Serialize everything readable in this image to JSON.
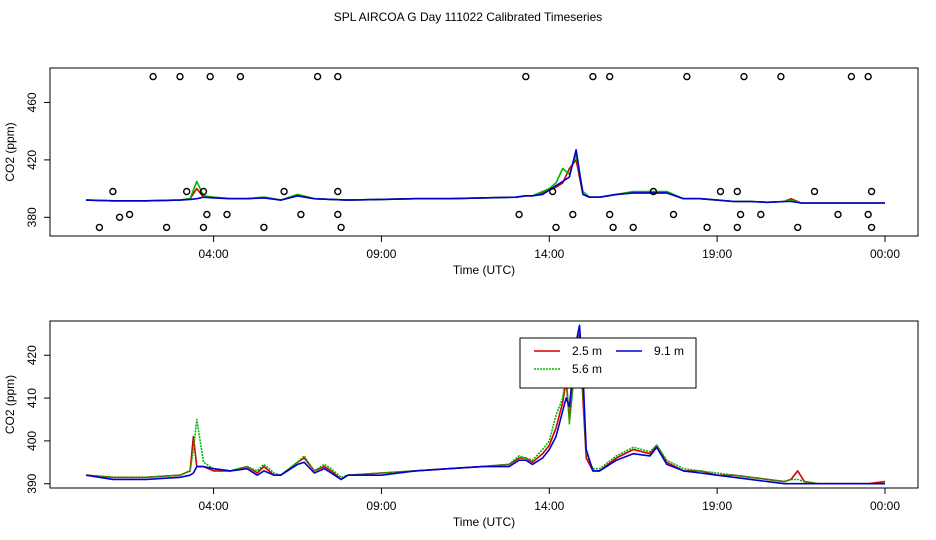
{
  "title": "SPL AIRCOA G  Day 111022  Calibrated Timeseries",
  "chart_data": [
    {
      "type": "line",
      "panel": "top",
      "xlabel": "Time (UTC)",
      "ylabel": "CO2 (ppm)",
      "x_unit": "hours (UTC) from 00:00 of day 111022",
      "xlim": [
        0,
        24
      ],
      "ylim": [
        367,
        484
      ],
      "x_ticks": [
        4,
        9,
        14,
        19,
        24
      ],
      "x_tick_labels": [
        "04:00",
        "09:00",
        "14:00",
        "19:00",
        "00:00"
      ],
      "y_ticks": [
        380,
        420,
        460
      ],
      "y_tick_labels": [
        "380",
        "420",
        "460"
      ],
      "grid": false,
      "series": [
        {
          "color": "#d40000",
          "x": [
            0.2,
            1,
            2,
            3,
            3.3,
            3.5,
            3.7,
            4,
            4.5,
            5,
            5.5,
            6,
            6.5,
            7,
            7.5,
            8,
            9,
            10,
            11,
            12,
            13,
            13.3,
            13.5,
            13.8,
            14,
            14.2,
            14.4,
            14.6,
            14.8,
            15,
            15.2,
            15.5,
            16,
            16.5,
            17,
            17.5,
            18,
            18.5,
            19,
            19.5,
            20,
            20.5,
            21,
            21.2,
            21.5,
            22,
            22.5,
            23,
            23.5,
            24
          ],
          "values": [
            392,
            391.5,
            391.5,
            392,
            393,
            400,
            394,
            394,
            393,
            393,
            394,
            392,
            395,
            393,
            392.5,
            392,
            392.5,
            393,
            393,
            393.5,
            394,
            395,
            395,
            397,
            399,
            401,
            404,
            414,
            420,
            396,
            394,
            394,
            396,
            397,
            397,
            397,
            393,
            393,
            392,
            391,
            391,
            390.5,
            391,
            393,
            390,
            390,
            390,
            390,
            390,
            390
          ]
        },
        {
          "color": "#00b800",
          "x": [
            0.2,
            1,
            2,
            3,
            3.3,
            3.5,
            3.7,
            4,
            4.5,
            5,
            5.5,
            6,
            6.5,
            7,
            7.5,
            8,
            9,
            10,
            11,
            12,
            13,
            13.3,
            13.5,
            13.8,
            14,
            14.2,
            14.4,
            14.6,
            14.8,
            15,
            15.2,
            15.5,
            16,
            16.5,
            17,
            17.5,
            18,
            18.5,
            19,
            19.5,
            20,
            20.5,
            21,
            21.2,
            21.5,
            22,
            22.5,
            23,
            23.5,
            24
          ],
          "values": [
            392,
            391.5,
            391.5,
            392,
            393,
            405,
            395,
            394,
            393,
            393,
            394,
            392,
            396,
            393,
            392.5,
            392,
            392.5,
            393,
            393,
            393.5,
            394,
            395,
            395,
            398,
            400,
            404,
            414,
            410,
            424,
            398,
            394,
            394,
            396,
            398,
            398,
            398,
            393,
            393,
            392,
            391,
            391,
            390.5,
            391,
            392,
            390,
            390,
            390,
            390,
            390,
            390
          ]
        },
        {
          "color": "#0000d0",
          "x": [
            0.2,
            1,
            2,
            3,
            3.3,
            3.5,
            3.7,
            4,
            4.5,
            5,
            5.5,
            6,
            6.5,
            7,
            7.5,
            8,
            9,
            10,
            11,
            12,
            13,
            13.3,
            13.5,
            13.8,
            14,
            14.2,
            14.4,
            14.6,
            14.8,
            15,
            15.2,
            15.5,
            16,
            16.5,
            17,
            17.5,
            18,
            18.5,
            19,
            19.5,
            20,
            20.5,
            21,
            21.2,
            21.5,
            22,
            22.5,
            23,
            23.5,
            24
          ],
          "values": [
            392,
            391.5,
            391.5,
            392,
            392.5,
            393,
            394,
            393.5,
            393,
            393,
            393.5,
            392,
            395,
            393,
            392.5,
            392,
            392.5,
            393,
            393,
            393.5,
            394,
            395,
            395,
            396,
            399,
            402,
            405,
            408,
            427,
            396,
            394,
            394,
            396,
            397,
            397,
            397,
            393,
            393,
            392,
            391,
            391,
            390.5,
            391,
            391,
            390,
            390,
            390,
            390,
            390,
            390
          ]
        }
      ],
      "scatter_circles": {
        "x": [
          1.2,
          2.2,
          3.0,
          3.9,
          4.8,
          7.1,
          7.7,
          13.3,
          15.3,
          15.8,
          18.1,
          19.8,
          20.9,
          23.0,
          23.5,
          1.0,
          3.2,
          3.7,
          6.1,
          7.7,
          14.1,
          17.1,
          19.1,
          19.6,
          21.9,
          23.6,
          1.5,
          3.8,
          4.4,
          6.6,
          7.7,
          13.1,
          14.7,
          15.8,
          17.7,
          19.7,
          20.3,
          22.6,
          23.5,
          0.6,
          2.6,
          3.7,
          5.5,
          7.8,
          14.2,
          15.9,
          16.5,
          18.7,
          19.6,
          21.4,
          23.6
        ],
        "values": [
          380,
          478,
          478,
          478,
          478,
          478,
          478,
          478,
          478,
          478,
          478,
          478,
          478,
          478,
          478,
          398,
          398,
          398,
          398,
          398,
          398,
          398,
          398,
          398,
          398,
          398,
          382,
          382,
          382,
          382,
          382,
          382,
          382,
          382,
          382,
          382,
          382,
          382,
          382,
          373,
          373,
          373,
          373,
          373,
          373,
          373,
          373,
          373,
          373,
          373,
          373
        ]
      }
    },
    {
      "type": "line",
      "panel": "bottom",
      "xlabel": "Time (UTC)",
      "ylabel": "CO2 (ppm)",
      "x_unit": "hours (UTC) from 00:00 of day 111022",
      "xlim": [
        0,
        24
      ],
      "ylim": [
        389,
        428
      ],
      "x_ticks": [
        4,
        9,
        14,
        19,
        24
      ],
      "x_tick_labels": [
        "04:00",
        "09:00",
        "14:00",
        "19:00",
        "00:00"
      ],
      "y_ticks": [
        390,
        400,
        410,
        420
      ],
      "y_tick_labels": [
        "390",
        "400",
        "410",
        "420"
      ],
      "grid": false,
      "legend_position": "top-right",
      "series": [
        {
          "name": "2.5 m",
          "color": "#d40000",
          "line": "solid",
          "x": [
            0.2,
            1,
            2,
            3,
            3.3,
            3.4,
            3.5,
            3.7,
            4,
            4.5,
            5,
            5.3,
            5.5,
            5.8,
            6,
            6.5,
            6.7,
            7,
            7.3,
            7.5,
            7.8,
            8,
            9,
            10,
            11,
            12,
            12.8,
            13.1,
            13.3,
            13.5,
            13.8,
            14,
            14.2,
            14.4,
            14.5,
            14.6,
            14.7,
            14.8,
            14.9,
            15,
            15.1,
            15.3,
            15.5,
            16,
            16.5,
            17,
            17.2,
            17.5,
            18,
            18.5,
            19,
            19.5,
            20,
            20.5,
            21,
            21.2,
            21.4,
            21.6,
            22,
            22.5,
            23,
            23.5,
            24
          ],
          "values": [
            392,
            391.5,
            391.5,
            392,
            393,
            401,
            394,
            394,
            393,
            393,
            394,
            392.5,
            394,
            392,
            392,
            395,
            396,
            393,
            394,
            393,
            391,
            392,
            392.5,
            393,
            393.5,
            394,
            394.5,
            396,
            396,
            395,
            397,
            399,
            403,
            409,
            414,
            405,
            413,
            420,
            425,
            410,
            396,
            393,
            393,
            396,
            398,
            397,
            399,
            395,
            393,
            393,
            392,
            392,
            391.5,
            391,
            390.5,
            391,
            393,
            390.5,
            390,
            390,
            390,
            390,
            390.5
          ]
        },
        {
          "name": "5.6 m",
          "color": "#00b800",
          "line": "dotted",
          "x": [
            0.2,
            1,
            2,
            3,
            3.3,
            3.4,
            3.5,
            3.7,
            4,
            4.5,
            5,
            5.3,
            5.5,
            5.8,
            6,
            6.5,
            6.7,
            7,
            7.3,
            7.5,
            7.8,
            8,
            9,
            10,
            11,
            12,
            12.8,
            13.1,
            13.3,
            13.5,
            13.8,
            14,
            14.2,
            14.4,
            14.5,
            14.6,
            14.7,
            14.8,
            14.9,
            15,
            15.1,
            15.3,
            15.5,
            16,
            16.5,
            17,
            17.2,
            17.5,
            18,
            18.5,
            19,
            19.5,
            20,
            20.5,
            21,
            21.2,
            21.4,
            21.6,
            22,
            22.5,
            23,
            23.5,
            24
          ],
          "values": [
            392,
            391.5,
            391.5,
            392,
            393,
            398,
            405,
            395,
            393.5,
            393,
            394,
            393,
            394.5,
            392.5,
            392,
            395,
            396.5,
            393,
            394.5,
            393.5,
            391.5,
            392,
            392.5,
            393,
            393.5,
            394,
            394.5,
            396.5,
            396,
            395.5,
            398,
            400,
            406,
            410,
            416,
            404,
            412,
            416,
            420,
            412,
            397,
            393.5,
            393.5,
            396.5,
            398.5,
            397.5,
            399,
            395.5,
            393.5,
            393,
            392.5,
            392,
            391.5,
            391,
            390.5,
            391,
            391,
            390.5,
            390,
            390,
            390,
            390,
            390
          ]
        },
        {
          "name": "9.1 m",
          "color": "#0000d0",
          "line": "solid",
          "x": [
            0.2,
            1,
            2,
            3,
            3.3,
            3.4,
            3.5,
            3.7,
            4,
            4.5,
            5,
            5.3,
            5.5,
            5.8,
            6,
            6.5,
            6.7,
            7,
            7.3,
            7.5,
            7.8,
            8,
            9,
            10,
            11,
            12,
            12.8,
            13.1,
            13.3,
            13.5,
            13.8,
            14,
            14.2,
            14.4,
            14.5,
            14.6,
            14.7,
            14.8,
            14.9,
            15,
            15.1,
            15.3,
            15.5,
            16,
            16.5,
            17,
            17.2,
            17.5,
            18,
            18.5,
            19,
            19.5,
            20,
            20.5,
            21,
            21.2,
            21.4,
            21.6,
            22,
            22.5,
            23,
            23.5,
            24
          ],
          "values": [
            392,
            391,
            391,
            391.5,
            392,
            392.5,
            394,
            394,
            393.5,
            393,
            393.5,
            392,
            393,
            392,
            392,
            394.5,
            395,
            392.5,
            393.5,
            392.5,
            391,
            392,
            392,
            393,
            393.5,
            394,
            394,
            395.5,
            395.5,
            394.5,
            396,
            398,
            401,
            407,
            410,
            408,
            416,
            423,
            427,
            416,
            398,
            393,
            393,
            395.5,
            397,
            396.5,
            398.5,
            394.5,
            393,
            392.5,
            392,
            391.5,
            391,
            390.5,
            390,
            390,
            390,
            390,
            390,
            390,
            390,
            390,
            390
          ]
        }
      ]
    }
  ]
}
